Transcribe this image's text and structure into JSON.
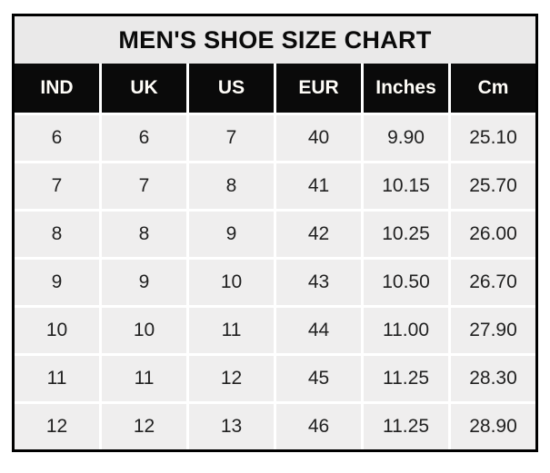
{
  "chart_data": {
    "type": "table",
    "title": "MEN'S SHOE SIZE CHART",
    "columns": [
      "IND",
      "UK",
      "US",
      "EUR",
      "Inches",
      "Cm"
    ],
    "rows": [
      [
        "6",
        "6",
        "7",
        "40",
        "9.90",
        "25.10"
      ],
      [
        "7",
        "7",
        "8",
        "41",
        "10.15",
        "25.70"
      ],
      [
        "8",
        "8",
        "9",
        "42",
        "10.25",
        "26.00"
      ],
      [
        "9",
        "9",
        "10",
        "43",
        "10.50",
        "26.70"
      ],
      [
        "10",
        "10",
        "11",
        "44",
        "11.00",
        "27.90"
      ],
      [
        "11",
        "11",
        "12",
        "45",
        "11.25",
        "28.30"
      ],
      [
        "12",
        "12",
        "13",
        "46",
        "11.25",
        "28.90"
      ]
    ],
    "layout": {
      "legend": "none",
      "grid": "white gaps between cells"
    },
    "colors": {
      "title_bg": "#eae9e9",
      "header_bg": "#0a0a0a",
      "header_text": "#ffffff",
      "cell_bg": "#efeeee",
      "cell_text": "#212121",
      "border": "#000000",
      "page_bg": "#ffffff"
    }
  }
}
